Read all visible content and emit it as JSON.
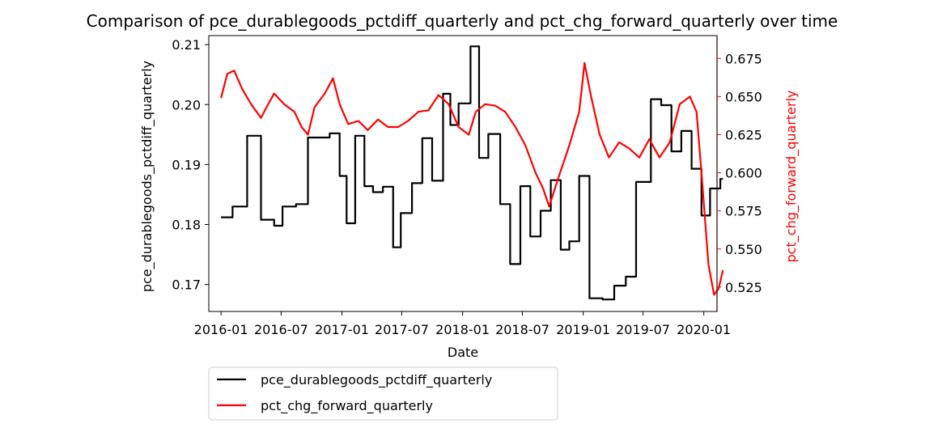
{
  "chart_data": {
    "type": "line",
    "title": "Comparison of pce_durablegoods_pctdiff_quarterly and pct_chg_forward_quarterly over time",
    "xlabel": "Date",
    "ylabel_left": "pce_durablegoods_pctdiff_quarterly",
    "ylabel_right": "pct_chg_forward_quarterly",
    "x_ticks": [
      "2016-01",
      "2016-07",
      "2017-01",
      "2017-07",
      "2018-01",
      "2018-07",
      "2019-01",
      "2019-07",
      "2020-01"
    ],
    "xlim": [
      "2015-11-25",
      "2020-02-10"
    ],
    "y_left_ticks": [
      0.17,
      0.18,
      0.19,
      0.2,
      0.21
    ],
    "y_left_lim": [
      0.1655,
      0.2115
    ],
    "y_right_ticks": [
      0.525,
      0.55,
      0.575,
      0.6,
      0.625,
      0.65,
      0.675
    ],
    "y_right_lim": [
      0.509,
      0.69
    ],
    "legend_position": "bottom-left-outside",
    "grid": false,
    "series": [
      {
        "name": "pce_durablegoods_pctdiff_quarterly",
        "color": "#000000",
        "axis": "left",
        "step": true,
        "points": [
          [
            "2016-01-01",
            0.1812
          ],
          [
            "2016-02-05",
            0.183
          ],
          [
            "2016-03-20",
            0.1948
          ],
          [
            "2016-05-01",
            0.1808
          ],
          [
            "2016-06-10",
            0.1798
          ],
          [
            "2016-07-05",
            0.183
          ],
          [
            "2016-08-15",
            0.1834
          ],
          [
            "2016-09-20",
            0.1945
          ],
          [
            "2016-11-25",
            0.1952
          ],
          [
            "2016-12-25",
            0.1881
          ],
          [
            "2017-01-15",
            0.1802
          ],
          [
            "2017-02-10",
            0.1948
          ],
          [
            "2017-03-10",
            0.1864
          ],
          [
            "2017-04-05",
            0.1854
          ],
          [
            "2017-05-05",
            0.1863
          ],
          [
            "2017-06-05",
            0.1762
          ],
          [
            "2017-06-28",
            0.1819
          ],
          [
            "2017-08-01",
            0.1869
          ],
          [
            "2017-09-01",
            0.1944
          ],
          [
            "2017-10-01",
            0.1873
          ],
          [
            "2017-11-03",
            0.2018
          ],
          [
            "2017-11-25",
            0.1966
          ],
          [
            "2017-12-20",
            0.2002
          ],
          [
            "2018-01-25",
            0.2097
          ],
          [
            "2018-02-20",
            0.1911
          ],
          [
            "2018-03-20",
            0.1951
          ],
          [
            "2018-04-25",
            0.1834
          ],
          [
            "2018-05-25",
            0.1734
          ],
          [
            "2018-06-25",
            0.1864
          ],
          [
            "2018-07-25",
            0.178
          ],
          [
            "2018-08-25",
            0.1823
          ],
          [
            "2018-09-25",
            0.1874
          ],
          [
            "2018-10-25",
            0.1758
          ],
          [
            "2018-11-20",
            0.1772
          ],
          [
            "2018-12-20",
            0.1881
          ],
          [
            "2019-01-20",
            0.1677
          ],
          [
            "2019-03-01",
            0.1675
          ],
          [
            "2019-04-05",
            0.1698
          ],
          [
            "2019-05-10",
            0.1713
          ],
          [
            "2019-06-10",
            0.1871
          ],
          [
            "2019-07-25",
            0.2009
          ],
          [
            "2019-08-25",
            0.1999
          ],
          [
            "2019-09-25",
            0.1922
          ],
          [
            "2019-10-25",
            0.1956
          ],
          [
            "2019-11-25",
            0.1893
          ],
          [
            "2019-12-25",
            0.1815
          ],
          [
            "2020-01-20",
            0.186
          ],
          [
            "2020-02-20",
            0.1876
          ],
          [
            "2020-02-28",
            0.1876
          ]
        ]
      },
      {
        "name": "pct_chg_forward_quarterly",
        "color": "#ff0000",
        "axis": "right",
        "step": false,
        "points": [
          [
            "2016-01-01",
            0.649
          ],
          [
            "2016-01-20",
            0.665
          ],
          [
            "2016-02-10",
            0.667
          ],
          [
            "2016-03-05",
            0.655
          ],
          [
            "2016-04-01",
            0.645
          ],
          [
            "2016-05-01",
            0.636
          ],
          [
            "2016-05-20",
            0.644
          ],
          [
            "2016-06-10",
            0.652
          ],
          [
            "2016-07-10",
            0.645
          ],
          [
            "2016-08-10",
            0.64
          ],
          [
            "2016-09-01",
            0.63
          ],
          [
            "2016-09-20",
            0.625
          ],
          [
            "2016-10-10",
            0.643
          ],
          [
            "2016-11-10",
            0.652
          ],
          [
            "2016-12-05",
            0.662
          ],
          [
            "2016-12-25",
            0.645
          ],
          [
            "2017-01-20",
            0.632
          ],
          [
            "2017-02-20",
            0.634
          ],
          [
            "2017-03-20",
            0.628
          ],
          [
            "2017-04-20",
            0.635
          ],
          [
            "2017-05-20",
            0.63
          ],
          [
            "2017-06-20",
            0.63
          ],
          [
            "2017-07-20",
            0.634
          ],
          [
            "2017-08-20",
            0.64
          ],
          [
            "2017-09-20",
            0.641
          ],
          [
            "2017-10-20",
            0.651
          ],
          [
            "2017-11-20",
            0.645
          ],
          [
            "2017-12-20",
            0.63
          ],
          [
            "2018-01-20",
            0.625
          ],
          [
            "2018-02-10",
            0.64
          ],
          [
            "2018-03-10",
            0.645
          ],
          [
            "2018-04-10",
            0.644
          ],
          [
            "2018-05-10",
            0.64
          ],
          [
            "2018-06-10",
            0.63
          ],
          [
            "2018-07-10",
            0.618
          ],
          [
            "2018-08-10",
            0.6
          ],
          [
            "2018-09-01",
            0.59
          ],
          [
            "2018-09-20",
            0.578
          ],
          [
            "2018-10-20",
            0.598
          ],
          [
            "2018-11-20",
            0.618
          ],
          [
            "2018-12-20",
            0.64
          ],
          [
            "2019-01-05",
            0.672
          ],
          [
            "2019-01-25",
            0.65
          ],
          [
            "2019-02-20",
            0.625
          ],
          [
            "2019-03-20",
            0.61
          ],
          [
            "2019-04-20",
            0.62
          ],
          [
            "2019-05-20",
            0.616
          ],
          [
            "2019-06-20",
            0.61
          ],
          [
            "2019-07-20",
            0.622
          ],
          [
            "2019-08-20",
            0.61
          ],
          [
            "2019-09-20",
            0.62
          ],
          [
            "2019-10-20",
            0.645
          ],
          [
            "2019-11-20",
            0.65
          ],
          [
            "2019-12-10",
            0.64
          ],
          [
            "2019-12-25",
            0.6
          ],
          [
            "2020-01-15",
            0.54
          ],
          [
            "2020-02-01",
            0.52
          ],
          [
            "2020-02-15",
            0.524
          ],
          [
            "2020-02-28",
            0.536
          ]
        ]
      }
    ]
  }
}
